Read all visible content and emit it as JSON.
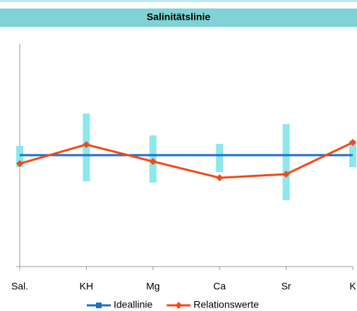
{
  "chart_data": {
    "type": "line",
    "title": "Salinitätslinie",
    "categories": [
      "Sal.",
      "KH",
      "Mg",
      "Ca",
      "Sr",
      "K"
    ],
    "ylim": [
      0,
      200
    ],
    "series": [
      {
        "name": "Ideallinie",
        "color": "#1f6fc5",
        "marker": "square",
        "values": [
          100,
          100,
          100,
          100,
          100,
          100
        ]
      },
      {
        "name": "Relationswerte",
        "color": "#f04a1a",
        "marker": "diamond",
        "values": [
          92.4,
          109.5,
          94.3,
          79.7,
          82.9,
          111.4
        ]
      }
    ],
    "ranges": {
      "color": "#7fe6ea",
      "low": [
        89.2,
        76.6,
        75.3,
        84.8,
        59.5,
        89.2
      ],
      "high": [
        108.2,
        137.3,
        117.7,
        110.1,
        127.8,
        113.3
      ]
    },
    "legend": "bottom"
  }
}
